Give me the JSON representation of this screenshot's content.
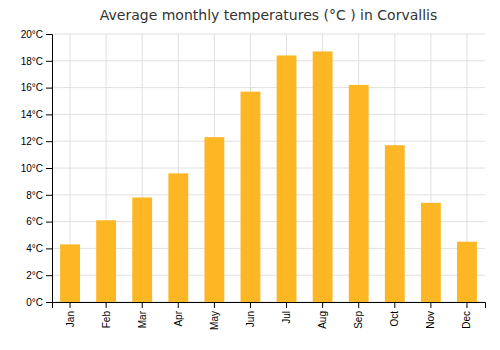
{
  "chart_data": {
    "type": "bar",
    "title": "Average monthly temperatures (°C ) in Corvallis",
    "categories": [
      "Jan",
      "Feb",
      "Mar",
      "Apr",
      "May",
      "Jun",
      "Jul",
      "Aug",
      "Sep",
      "Oct",
      "Nov",
      "Dec"
    ],
    "values": [
      4.3,
      6.1,
      7.8,
      9.6,
      12.3,
      15.7,
      18.4,
      18.7,
      16.2,
      11.7,
      7.4,
      4.5
    ],
    "color": "#FDB624",
    "ylim": [
      0,
      20
    ],
    "yticks": [
      {
        "value": 0,
        "label": "0°C"
      },
      {
        "value": 2,
        "label": "2°C"
      },
      {
        "value": 4,
        "label": "4°C"
      },
      {
        "value": 6,
        "label": "6°C"
      },
      {
        "value": 8,
        "label": "8°C"
      },
      {
        "value": 10,
        "label": "10°C"
      },
      {
        "value": 12,
        "label": "12°C"
      },
      {
        "value": 14,
        "label": "14°C"
      },
      {
        "value": 16,
        "label": "16°C"
      },
      {
        "value": 18,
        "label": "18°C"
      },
      {
        "value": 20,
        "label": "20°C"
      }
    ],
    "grid": true
  }
}
